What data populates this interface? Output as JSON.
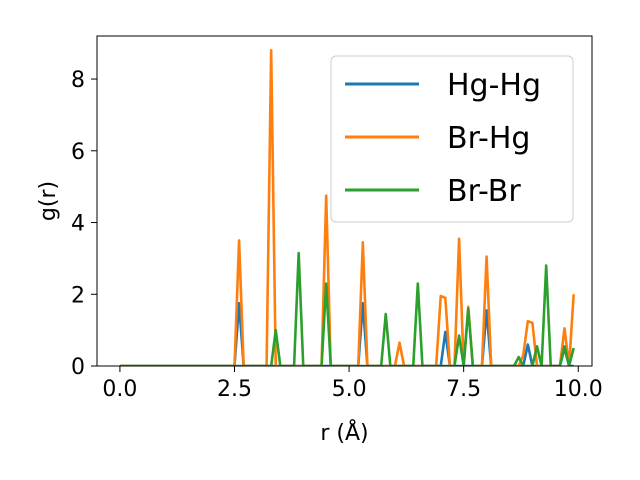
{
  "chart_data": {
    "type": "line",
    "title": "",
    "xlabel": "r (Å)",
    "ylabel": "g(r)",
    "xlim": [
      -0.5,
      10.3
    ],
    "ylim": [
      0,
      9.2
    ],
    "xticks": [
      0.0,
      2.5,
      5.0,
      7.5,
      10.0
    ],
    "xtick_labels": [
      "0.0",
      "2.5",
      "5.0",
      "7.5",
      "10.0"
    ],
    "yticks": [
      0,
      2,
      4,
      6,
      8
    ],
    "ytick_labels": [
      "0",
      "2",
      "4",
      "6",
      "8"
    ],
    "grid": false,
    "legend_position": "top-right",
    "series": [
      {
        "name": "Hg-Hg",
        "color": "#1f77b4",
        "points": [
          [
            0,
            0
          ],
          [
            2.5,
            0
          ],
          [
            2.6,
            1.75
          ],
          [
            2.7,
            0
          ],
          [
            5.2,
            0
          ],
          [
            5.3,
            1.75
          ],
          [
            5.4,
            0
          ],
          [
            7.0,
            0
          ],
          [
            7.1,
            0.95
          ],
          [
            7.2,
            0
          ],
          [
            7.9,
            0
          ],
          [
            8.0,
            1.55
          ],
          [
            8.1,
            0
          ],
          [
            8.8,
            0
          ],
          [
            8.9,
            0.6
          ],
          [
            9.0,
            0
          ],
          [
            9.6,
            0
          ],
          [
            9.7,
            0.5
          ],
          [
            9.8,
            0
          ],
          [
            9.9,
            0
          ]
        ]
      },
      {
        "name": "Br-Hg",
        "color": "#ff7f0e",
        "points": [
          [
            0,
            0
          ],
          [
            2.5,
            0
          ],
          [
            2.6,
            3.5
          ],
          [
            2.7,
            0
          ],
          [
            3.2,
            0
          ],
          [
            3.3,
            8.8
          ],
          [
            3.4,
            0
          ],
          [
            4.4,
            0
          ],
          [
            4.5,
            4.75
          ],
          [
            4.6,
            0
          ],
          [
            5.2,
            0
          ],
          [
            5.3,
            3.45
          ],
          [
            5.4,
            0
          ],
          [
            6.0,
            0
          ],
          [
            6.1,
            0.65
          ],
          [
            6.2,
            0
          ],
          [
            6.9,
            0
          ],
          [
            7.0,
            1.95
          ],
          [
            7.1,
            1.9
          ],
          [
            7.2,
            0
          ],
          [
            7.3,
            0
          ],
          [
            7.4,
            3.55
          ],
          [
            7.5,
            0
          ],
          [
            7.6,
            1.65
          ],
          [
            7.7,
            0
          ],
          [
            7.9,
            0
          ],
          [
            8.0,
            3.05
          ],
          [
            8.1,
            0
          ],
          [
            8.7,
            0
          ],
          [
            8.8,
            0.3
          ],
          [
            8.9,
            1.25
          ],
          [
            9.0,
            1.2
          ],
          [
            9.1,
            0
          ],
          [
            9.6,
            0
          ],
          [
            9.7,
            1.05
          ],
          [
            9.8,
            0
          ],
          [
            9.9,
            2.0
          ]
        ]
      },
      {
        "name": "Br-Br",
        "color": "#2ca02c",
        "points": [
          [
            0,
            0
          ],
          [
            3.3,
            0
          ],
          [
            3.4,
            1.0
          ],
          [
            3.5,
            0
          ],
          [
            3.8,
            0
          ],
          [
            3.9,
            3.15
          ],
          [
            4.0,
            0
          ],
          [
            4.4,
            0
          ],
          [
            4.5,
            2.3
          ],
          [
            4.6,
            0
          ],
          [
            5.7,
            0
          ],
          [
            5.8,
            1.45
          ],
          [
            5.9,
            0
          ],
          [
            6.4,
            0
          ],
          [
            6.5,
            2.3
          ],
          [
            6.6,
            0
          ],
          [
            7.3,
            0
          ],
          [
            7.4,
            0.85
          ],
          [
            7.5,
            0
          ],
          [
            7.6,
            1.6
          ],
          [
            7.7,
            0
          ],
          [
            8.6,
            0
          ],
          [
            8.7,
            0.25
          ],
          [
            8.8,
            0
          ],
          [
            9.0,
            0
          ],
          [
            9.1,
            0.55
          ],
          [
            9.2,
            0
          ],
          [
            9.3,
            2.8
          ],
          [
            9.4,
            0
          ],
          [
            9.6,
            0
          ],
          [
            9.7,
            0.55
          ],
          [
            9.8,
            0
          ],
          [
            9.9,
            0.5
          ]
        ]
      }
    ]
  }
}
